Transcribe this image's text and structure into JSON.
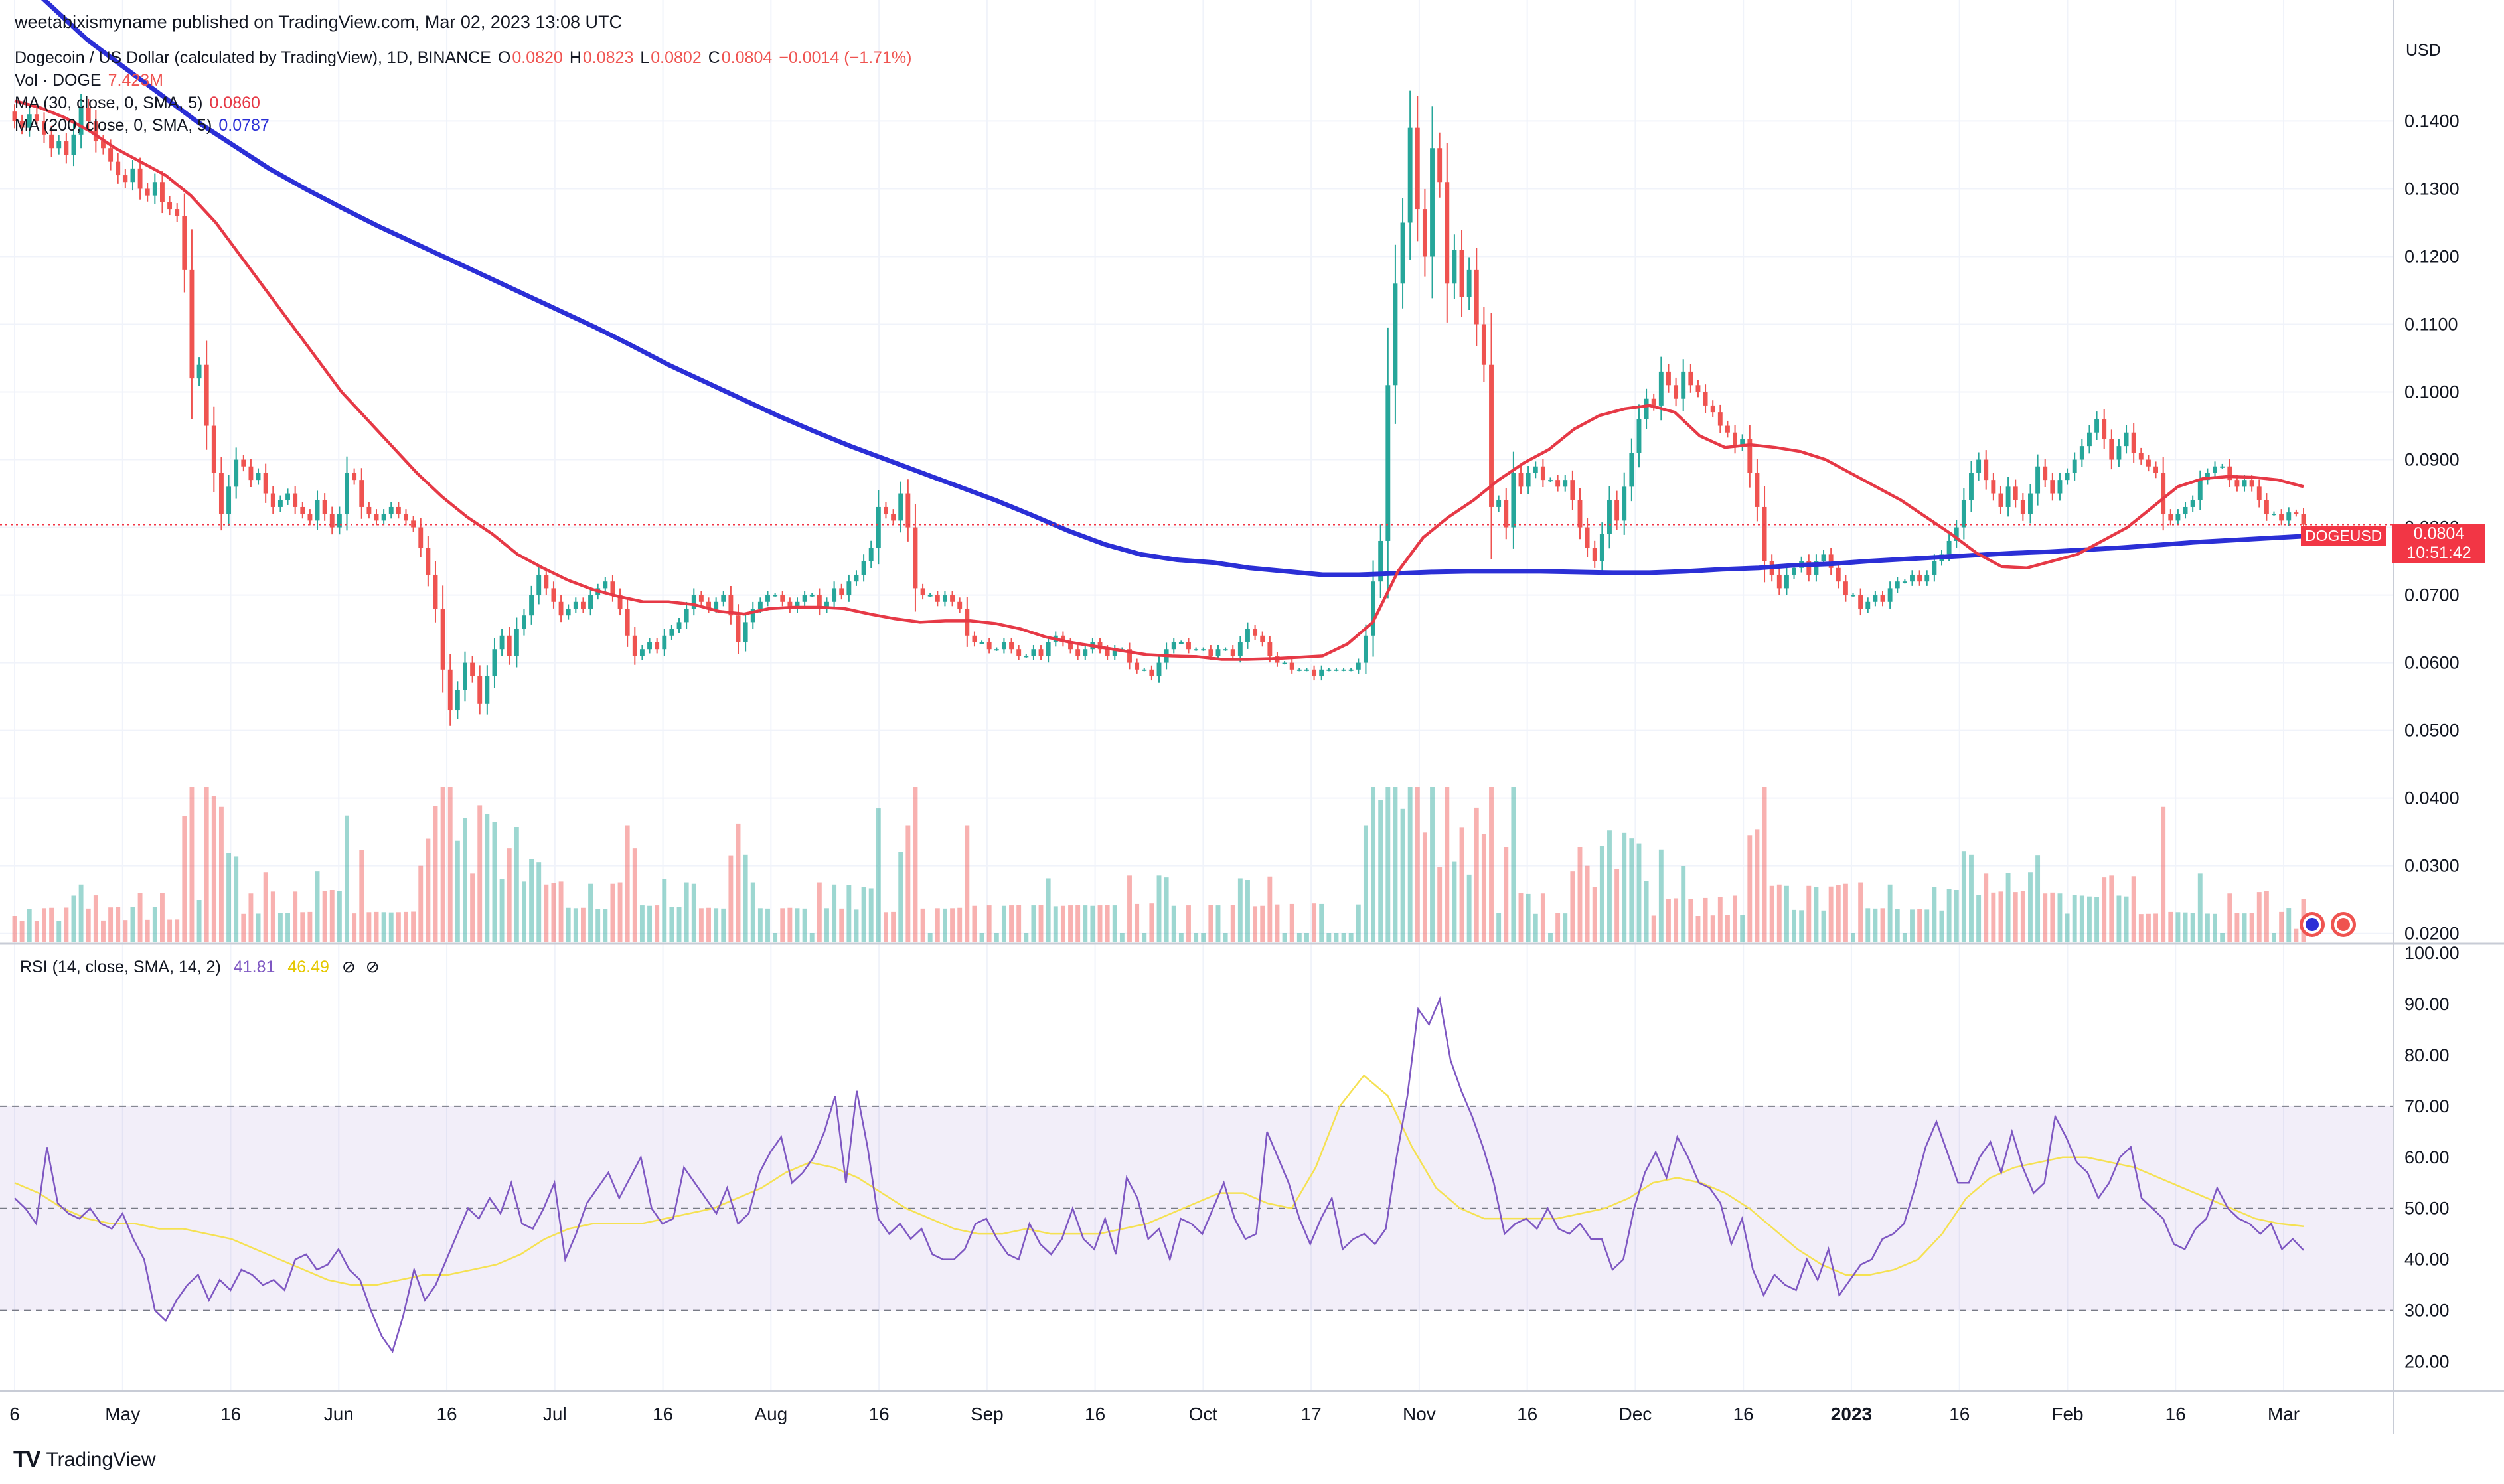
{
  "header": {
    "published": "weetabixismyname published on TradingView.com, Mar 02, 2023 13:08 UTC",
    "symbol_line": {
      "name": "Dogecoin / US Dollar (calculated by TradingView), 1D, BINANCE",
      "o_label": "O",
      "o": "0.0820",
      "h_label": "H",
      "h": "0.0823",
      "l_label": "L",
      "l": "0.0802",
      "c_label": "C",
      "c": "0.0804",
      "change": "−0.0014 (−1.71%)"
    },
    "vol_line": {
      "label": "Vol · DOGE",
      "value": "7.423M"
    },
    "ma30_line": {
      "label": "MA (30, close, 0, SMA, 5)",
      "value": "0.0860"
    },
    "ma200_line": {
      "label": "MA (200, close, 0, SMA, 5)",
      "value": "0.0787"
    },
    "rsi_line": {
      "label": "RSI (14, close, SMA, 14, 2)",
      "rsi": "41.81",
      "sma": "46.49"
    }
  },
  "price_axis": {
    "currency": "USD",
    "ticks": [
      "0.1400",
      "0.1300",
      "0.1200",
      "0.1100",
      "0.1000",
      "0.0900",
      "0.0800",
      "0.0700",
      "0.0600",
      "0.0500",
      "0.0400",
      "0.0300",
      "0.0200"
    ]
  },
  "rsi_axis": {
    "ticks": [
      "100.00",
      "90.00",
      "80.00",
      "70.00",
      "60.00",
      "50.00",
      "40.00",
      "30.00",
      "20.00"
    ]
  },
  "time_axis": {
    "ticks": [
      "6",
      "May",
      "16",
      "Jun",
      "16",
      "Jul",
      "16",
      "Aug",
      "16",
      "Sep",
      "16",
      "Oct",
      "17",
      "Nov",
      "16",
      "Dec",
      "16",
      "2023",
      "16",
      "Feb",
      "16",
      "Mar"
    ]
  },
  "last_price": {
    "symbol": "DOGEUSD",
    "price": "0.0804",
    "countdown": "10:51:42"
  },
  "branding": {
    "name": "TradingView",
    "logo": "TV"
  },
  "colors": {
    "up": "#26a69a",
    "down": "#ef5350",
    "ma30": "#e63946",
    "ma200": "#2b2fd6",
    "rsi": "#7e57c2",
    "rsi_sma": "#f5e152"
  },
  "chart_data": {
    "type": "candlestick",
    "title": "Dogecoin / US Dollar (calculated by TradingView), 1D, BINANCE",
    "y_range": [
      0.0185,
      0.152
    ],
    "rsi_range": [
      15,
      100
    ],
    "rsi_bands": [
      30,
      50,
      70
    ],
    "closes": [
      0.14,
      0.139,
      0.141,
      0.14,
      0.138,
      0.136,
      0.137,
      0.135,
      0.138,
      0.142,
      0.14,
      0.137,
      0.136,
      0.134,
      0.132,
      0.131,
      0.133,
      0.13,
      0.129,
      0.131,
      0.128,
      0.127,
      0.126,
      0.118,
      0.102,
      0.104,
      0.095,
      0.088,
      0.082,
      0.086,
      0.09,
      0.089,
      0.087,
      0.088,
      0.085,
      0.083,
      0.084,
      0.085,
      0.083,
      0.082,
      0.081,
      0.084,
      0.082,
      0.08,
      0.082,
      0.088,
      0.087,
      0.083,
      0.082,
      0.081,
      0.082,
      0.083,
      0.082,
      0.081,
      0.08,
      0.077,
      0.073,
      0.068,
      0.059,
      0.053,
      0.056,
      0.06,
      0.058,
      0.054,
      0.058,
      0.062,
      0.064,
      0.061,
      0.065,
      0.067,
      0.07,
      0.073,
      0.071,
      0.069,
      0.067,
      0.068,
      0.069,
      0.068,
      0.07,
      0.071,
      0.072,
      0.07,
      0.068,
      0.064,
      0.061,
      0.062,
      0.063,
      0.062,
      0.064,
      0.065,
      0.066,
      0.068,
      0.07,
      0.069,
      0.068,
      0.069,
      0.07,
      0.067,
      0.063,
      0.066,
      0.068,
      0.069,
      0.07,
      0.07,
      0.069,
      0.068,
      0.069,
      0.07,
      0.07,
      0.068,
      0.069,
      0.071,
      0.07,
      0.072,
      0.073,
      0.075,
      0.077,
      0.083,
      0.082,
      0.081,
      0.085,
      0.08,
      0.071,
      0.07,
      0.07,
      0.069,
      0.07,
      0.069,
      0.068,
      0.064,
      0.063,
      0.063,
      0.062,
      0.062,
      0.063,
      0.062,
      0.061,
      0.061,
      0.062,
      0.061,
      0.063,
      0.064,
      0.063,
      0.062,
      0.061,
      0.062,
      0.063,
      0.062,
      0.061,
      0.062,
      0.062,
      0.06,
      0.059,
      0.059,
      0.058,
      0.06,
      0.062,
      0.063,
      0.063,
      0.062,
      0.062,
      0.062,
      0.061,
      0.062,
      0.062,
      0.061,
      0.063,
      0.065,
      0.064,
      0.063,
      0.061,
      0.06,
      0.06,
      0.059,
      0.059,
      0.059,
      0.058,
      0.059,
      0.059,
      0.059,
      0.059,
      0.059,
      0.06,
      0.064,
      0.072,
      0.078,
      0.101,
      0.116,
      0.125,
      0.139,
      0.127,
      0.12,
      0.136,
      0.131,
      0.116,
      0.121,
      0.114,
      0.118,
      0.11,
      0.104,
      0.083,
      0.084,
      0.08,
      0.088,
      0.086,
      0.088,
      0.089,
      0.087,
      0.087,
      0.086,
      0.087,
      0.084,
      0.08,
      0.077,
      0.075,
      0.079,
      0.084,
      0.081,
      0.086,
      0.091,
      0.096,
      0.099,
      0.098,
      0.103,
      0.101,
      0.099,
      0.103,
      0.101,
      0.1,
      0.098,
      0.097,
      0.095,
      0.094,
      0.092,
      0.093,
      0.088,
      0.083,
      0.075,
      0.073,
      0.071,
      0.073,
      0.074,
      0.075,
      0.073,
      0.075,
      0.076,
      0.074,
      0.072,
      0.07,
      0.07,
      0.068,
      0.069,
      0.07,
      0.069,
      0.071,
      0.072,
      0.072,
      0.073,
      0.072,
      0.073,
      0.075,
      0.076,
      0.078,
      0.08,
      0.084,
      0.088,
      0.09,
      0.087,
      0.085,
      0.083,
      0.086,
      0.084,
      0.082,
      0.085,
      0.089,
      0.087,
      0.085,
      0.087,
      0.088,
      0.09,
      0.092,
      0.094,
      0.096,
      0.093,
      0.09,
      0.092,
      0.094,
      0.091,
      0.09,
      0.089,
      0.088,
      0.082,
      0.081,
      0.082,
      0.083,
      0.084,
      0.087,
      0.088,
      0.089,
      0.089,
      0.087,
      0.086,
      0.087,
      0.086,
      0.084,
      0.082,
      0.082,
      0.081,
      0.0822,
      0.082,
      0.0804
    ],
    "ma30": [
      0.143,
      0.142,
      0.1405,
      0.1385,
      0.136,
      0.134,
      0.132,
      0.129,
      0.125,
      0.12,
      0.115,
      0.11,
      0.105,
      0.1,
      0.096,
      0.092,
      0.088,
      0.0845,
      0.0815,
      0.079,
      0.076,
      0.074,
      0.0722,
      0.0708,
      0.0698,
      0.069,
      0.069,
      0.0686,
      0.0676,
      0.0672,
      0.068,
      0.0682,
      0.0682,
      0.068,
      0.0672,
      0.0665,
      0.066,
      0.0662,
      0.0662,
      0.0658,
      0.065,
      0.0638,
      0.063,
      0.0624,
      0.0618,
      0.0612,
      0.061,
      0.0609,
      0.0605,
      0.0605,
      0.0606,
      0.0608,
      0.061,
      0.0628,
      0.066,
      0.0735,
      0.0785,
      0.0815,
      0.084,
      0.087,
      0.0895,
      0.0915,
      0.0945,
      0.0965,
      0.0975,
      0.098,
      0.097,
      0.0935,
      0.0918,
      0.0922,
      0.0918,
      0.0912,
      0.09,
      0.088,
      0.086,
      0.084,
      0.0815,
      0.079,
      0.0762,
      0.0742,
      0.074,
      0.075,
      0.076,
      0.078,
      0.08,
      0.083,
      0.086,
      0.0872,
      0.0875,
      0.0874,
      0.087,
      0.086
    ],
    "ma200": [
      0.162,
      0.157,
      0.152,
      0.148,
      0.144,
      0.14,
      0.1365,
      0.133,
      0.13,
      0.1272,
      0.1245,
      0.122,
      0.1195,
      0.117,
      0.1145,
      0.112,
      0.1095,
      0.1068,
      0.104,
      0.1015,
      0.099,
      0.0965,
      0.0942,
      0.092,
      0.09,
      0.088,
      0.086,
      0.084,
      0.0818,
      0.0795,
      0.0775,
      0.076,
      0.0752,
      0.0748,
      0.074,
      0.0735,
      0.073,
      0.073,
      0.0732,
      0.0734,
      0.0735,
      0.0735,
      0.0735,
      0.0734,
      0.0733,
      0.0733,
      0.0735,
      0.0738,
      0.074,
      0.0744,
      0.0746,
      0.075,
      0.0753,
      0.0756,
      0.0759,
      0.0762,
      0.0764,
      0.0767,
      0.077,
      0.0774,
      0.0778,
      0.0781,
      0.0784,
      0.0787
    ],
    "rsi": [
      52,
      50,
      47,
      62,
      51,
      49,
      48,
      50,
      47,
      46,
      49,
      44,
      40,
      30,
      28,
      32,
      35,
      37,
      32,
      36,
      34,
      38,
      37,
      35,
      36,
      34,
      40,
      41,
      38,
      39,
      42,
      38,
      36,
      30,
      25,
      22,
      29,
      38,
      32,
      35,
      40,
      45,
      50,
      48,
      52,
      49,
      55,
      47,
      46,
      50,
      55,
      40,
      45,
      51,
      54,
      57,
      52,
      56,
      60,
      50,
      47,
      48,
      58,
      55,
      52,
      49,
      54,
      47,
      49,
      57,
      61,
      64,
      55,
      57,
      60,
      65,
      72,
      55,
      73,
      62,
      48,
      45,
      47,
      44,
      46,
      41,
      40,
      40,
      42,
      47,
      48,
      44,
      41,
      40,
      47,
      43,
      41,
      44,
      50,
      44,
      42,
      48,
      41,
      56,
      52,
      44,
      46,
      40,
      48,
      47,
      45,
      50,
      55,
      48,
      44,
      45,
      65,
      60,
      55,
      48,
      43,
      48,
      52,
      42,
      44,
      45,
      43,
      46,
      60,
      72,
      89,
      86,
      91,
      79,
      73,
      68,
      62,
      55,
      45,
      47,
      48,
      46,
      50,
      46,
      45,
      47,
      44,
      44,
      38,
      40,
      50,
      57,
      61,
      56,
      64,
      60,
      55,
      54,
      51,
      43,
      48,
      38,
      33,
      37,
      35,
      34,
      40,
      36,
      42,
      33,
      36,
      39,
      40,
      44,
      45,
      47,
      54,
      62,
      67,
      61,
      55,
      55,
      60,
      63,
      57,
      65,
      58,
      53,
      55,
      68,
      64,
      59,
      57,
      52,
      55,
      60,
      62,
      52,
      50,
      48,
      43,
      42,
      46,
      48,
      54,
      50,
      48,
      47,
      45,
      47,
      42,
      44,
      41.81
    ],
    "rsi_sma": [
      55,
      53,
      50,
      48,
      47,
      47,
      46,
      46,
      45,
      44,
      42,
      40,
      38,
      36,
      35,
      35,
      36,
      37,
      37,
      38,
      39,
      41,
      44,
      46,
      47,
      47,
      47,
      48,
      49,
      50,
      52,
      54,
      57,
      59,
      58,
      56,
      53,
      50,
      48,
      46,
      45,
      45,
      46,
      45,
      45,
      45,
      46,
      47,
      49,
      51,
      53,
      53,
      51,
      50,
      58,
      70,
      76,
      72,
      62,
      54,
      50,
      48,
      48,
      48,
      48,
      49,
      50,
      52,
      55,
      56,
      55,
      53,
      50,
      46,
      42,
      39,
      37,
      37,
      38,
      40,
      45,
      52,
      56,
      58,
      59,
      60,
      60,
      59,
      58,
      56,
      54,
      52,
      50,
      48,
      47,
      46.49
    ]
  }
}
